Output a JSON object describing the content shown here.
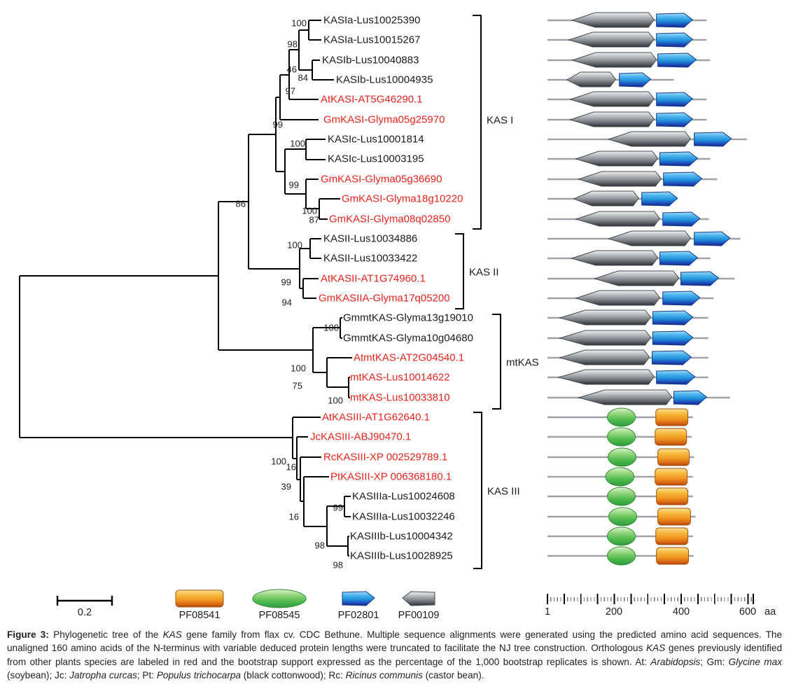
{
  "figure": {
    "rows": [
      {
        "label": "KASIa-Lus10025390",
        "red": false,
        "length": 477,
        "domains": [
          {
            "pfam": "PF00109",
            "start": 75,
            "end": 320
          },
          {
            "pfam": "PF02801",
            "start": 327,
            "end": 435
          }
        ]
      },
      {
        "label": "KASIa-Lus10015267",
        "red": false,
        "length": 477,
        "domains": [
          {
            "pfam": "PF00109",
            "start": 65,
            "end": 320
          },
          {
            "pfam": "PF02801",
            "start": 327,
            "end": 435
          }
        ]
      },
      {
        "label": "KASIb-Lus10040883",
        "red": false,
        "length": 488,
        "domains": [
          {
            "pfam": "PF00109",
            "start": 75,
            "end": 327
          },
          {
            "pfam": "PF02801",
            "start": 331,
            "end": 446
          }
        ]
      },
      {
        "label": "KASIb-Lus10004935",
        "red": false,
        "length": 379,
        "domains": [
          {
            "pfam": "PF00109",
            "start": 59,
            "end": 205
          },
          {
            "pfam": "PF02801",
            "start": 216,
            "end": 310
          }
        ]
      },
      {
        "label": "AtKASI-AT5G46290.1",
        "red": true,
        "length": 477,
        "domains": [
          {
            "pfam": "PF00109",
            "start": 69,
            "end": 320
          },
          {
            "pfam": "PF02801",
            "start": 327,
            "end": 435
          }
        ]
      },
      {
        "label": "GmKASI-Glyma05g25970",
        "red": true,
        "length": 477,
        "domains": [
          {
            "pfam": "PF00109",
            "start": 69,
            "end": 320
          },
          {
            "pfam": "PF02801",
            "start": 327,
            "end": 435
          }
        ]
      },
      {
        "label": "KASIc-Lus10001814",
        "red": false,
        "length": 597,
        "domains": [
          {
            "pfam": "PF00109",
            "start": 184,
            "end": 429
          },
          {
            "pfam": "PF02801",
            "start": 440,
            "end": 551
          }
        ]
      },
      {
        "label": "KASIc-Lus10003195",
        "red": false,
        "length": 488,
        "domains": [
          {
            "pfam": "PF00109",
            "start": 86,
            "end": 331
          },
          {
            "pfam": "PF02801",
            "start": 337,
            "end": 450
          }
        ]
      },
      {
        "label": "GmKASI-Glyma05g36690",
        "red": true,
        "length": 509,
        "domains": [
          {
            "pfam": "PF00109",
            "start": 94,
            "end": 341
          },
          {
            "pfam": "PF02801",
            "start": 348,
            "end": 463
          }
        ]
      },
      {
        "label": "GmKASI-Glyma18g10220",
        "red": true,
        "length": 390,
        "domains": [
          {
            "pfam": "PF00109",
            "start": 80,
            "end": 274
          },
          {
            "pfam": "PF02801",
            "start": 283,
            "end": 390
          }
        ]
      },
      {
        "label": "GmKASI-Glyma08q02850",
        "red": true,
        "length": 484,
        "domains": [
          {
            "pfam": "PF00109",
            "start": 86,
            "end": 337
          },
          {
            "pfam": "PF02801",
            "start": 346,
            "end": 457
          }
        ]
      },
      {
        "label": "KASII-Lus10034886",
        "red": false,
        "length": 578,
        "domains": [
          {
            "pfam": "PF00109",
            "start": 184,
            "end": 429
          },
          {
            "pfam": "PF02801",
            "start": 440,
            "end": 547
          }
        ]
      },
      {
        "label": "KASII-Lus10033422",
        "red": false,
        "length": 488,
        "domains": [
          {
            "pfam": "PF00109",
            "start": 73,
            "end": 331
          },
          {
            "pfam": "PF02801",
            "start": 337,
            "end": 450
          }
        ]
      },
      {
        "label": "AtKASII-AT1G74960.1",
        "red": true,
        "length": 561,
        "domains": [
          {
            "pfam": "PF00109",
            "start": 142,
            "end": 394
          },
          {
            "pfam": "PF02801",
            "start": 400,
            "end": 513
          }
        ]
      },
      {
        "label": "GmKASIIA-Glyma17q05200",
        "red": true,
        "length": 498,
        "domains": [
          {
            "pfam": "PF00109",
            "start": 86,
            "end": 337
          },
          {
            "pfam": "PF02801",
            "start": 346,
            "end": 457
          }
        ]
      },
      {
        "label": "GmmtKAS-Glyma13g19010",
        "red": false,
        "length": 482,
        "domains": [
          {
            "pfam": "PF00109",
            "start": 38,
            "end": 310
          },
          {
            "pfam": "PF02801",
            "start": 316,
            "end": 436
          }
        ]
      },
      {
        "label": "GmmtKAS-Glyma10g04680",
        "red": false,
        "length": 482,
        "domains": [
          {
            "pfam": "PF00109",
            "start": 38,
            "end": 310
          },
          {
            "pfam": "PF02801",
            "start": 316,
            "end": 436
          }
        ]
      },
      {
        "label": "AtmtKAS-AT2G04540.1",
        "red": true,
        "length": 482,
        "domains": [
          {
            "pfam": "PF00109",
            "start": 38,
            "end": 306
          },
          {
            "pfam": "PF02801",
            "start": 314,
            "end": 431
          }
        ]
      },
      {
        "label": "mtKAS-Lus10014622",
        "red": true,
        "length": 482,
        "domains": [
          {
            "pfam": "PF00109",
            "start": 34,
            "end": 320
          },
          {
            "pfam": "PF02801",
            "start": 327,
            "end": 442
          }
        ]
      },
      {
        "label": "mtKAS-Lus10033810",
        "red": true,
        "length": 547,
        "domains": [
          {
            "pfam": "PF00109",
            "start": 94,
            "end": 373
          },
          {
            "pfam": "PF02801",
            "start": 379,
            "end": 477
          }
        ]
      },
      {
        "label": "AtKASIII-AT1G62640.1",
        "red": true,
        "length": 436,
        "domains": [
          {
            "pfam": "PF08545",
            "start": 180,
            "end": 264
          },
          {
            "pfam": "PF08541",
            "start": 325,
            "end": 421
          }
        ]
      },
      {
        "label": "JcKASIII-ABJ90470.1",
        "red": true,
        "length": 432,
        "domains": [
          {
            "pfam": "PF08545",
            "start": 180,
            "end": 264
          },
          {
            "pfam": "PF08541",
            "start": 323,
            "end": 417
          }
        ]
      },
      {
        "label": "RcKASIII-XP 002529789.1",
        "red": true,
        "length": 440,
        "domains": [
          {
            "pfam": "PF08545",
            "start": 182,
            "end": 266
          },
          {
            "pfam": "PF08541",
            "start": 331,
            "end": 425
          }
        ]
      },
      {
        "label": "PtKASIII-XP 006368180.1",
        "red": true,
        "length": 436,
        "domains": [
          {
            "pfam": "PF08545",
            "start": 175,
            "end": 260
          },
          {
            "pfam": "PF08541",
            "start": 323,
            "end": 419
          }
        ]
      },
      {
        "label": "KASIIIa-Lus10024608",
        "red": false,
        "length": 436,
        "domains": [
          {
            "pfam": "PF08545",
            "start": 180,
            "end": 264
          },
          {
            "pfam": "PF08541",
            "start": 327,
            "end": 421
          }
        ]
      },
      {
        "label": "KASIIIa-Lus10032246",
        "red": false,
        "length": 444,
        "domains": [
          {
            "pfam": "PF08545",
            "start": 184,
            "end": 268
          },
          {
            "pfam": "PF08541",
            "start": 331,
            "end": 429
          }
        ]
      },
      {
        "label": "KASIIIb-Lus10004342",
        "red": false,
        "length": 436,
        "domains": [
          {
            "pfam": "PF08545",
            "start": 180,
            "end": 264
          },
          {
            "pfam": "PF08541",
            "start": 325,
            "end": 421
          }
        ]
      },
      {
        "label": "KASIIIb-Lus10028925",
        "red": false,
        "length": 438,
        "domains": [
          {
            "pfam": "PF08545",
            "start": 180,
            "end": 264
          },
          {
            "pfam": "PF08541",
            "start": 327,
            "end": 423
          }
        ]
      }
    ],
    "bootstraps": [
      100,
      98,
      46,
      84,
      97,
      99,
      100,
      99,
      100,
      87,
      86,
      100,
      99,
      94,
      100,
      100,
      75,
      100,
      100,
      16,
      39,
      16,
      99,
      98,
      98
    ],
    "groups": [
      {
        "label": "KAS I"
      },
      {
        "label": "KAS II"
      },
      {
        "label": "mtKAS"
      },
      {
        "label": "KAS III"
      }
    ],
    "scale_bar": {
      "value": "0.2"
    },
    "legend": {
      "items": [
        {
          "pfam": "PF08541",
          "shape": "rounded-rectangle",
          "color": "#f0951f"
        },
        {
          "pfam": "PF08545",
          "shape": "ellipse",
          "color": "#4eba4d"
        },
        {
          "pfam": "PF02801",
          "shape": "pentagon-right",
          "color": "#2292dc"
        },
        {
          "pfam": "PF00109",
          "shape": "pentagon-left",
          "color": "#8b9095"
        }
      ]
    },
    "ruler": {
      "tick_labels": [
        "1",
        "200",
        "400",
        "600"
      ],
      "unit": "aa",
      "min": 1,
      "max": 620,
      "major_step": 50,
      "minor_step": 10
    }
  },
  "colors": {
    "ortholog_red": "#e7251d",
    "text_black": "#1c1c1c",
    "tree_line": "#000000",
    "backbone_line": "#9fa3a7"
  },
  "caption": {
    "segments": [
      {
        "text": "Figure 3: ",
        "bold": true
      },
      {
        "text": "Phylogenetic tree of the "
      },
      {
        "text": "KAS",
        "italic": true
      },
      {
        "text": " gene family from flax cv. CDC Bethune. Multiple sequence alignments were generated using the predicted amino acid sequences. The unaligned 160 amino acids of the N-terminus with variable deduced protein lengths were truncated to facilitate the NJ tree construction. Orthologous "
      },
      {
        "text": "KAS",
        "italic": true
      },
      {
        "text": " genes previously identified from other plants species are labeled in red and the bootstrap support expressed as the percentage of the 1,000 bootstrap replicates is shown. At: "
      },
      {
        "text": "Arabidopsis",
        "italic": true
      },
      {
        "text": "; Gm: "
      },
      {
        "text": "Glycine max",
        "italic": true
      },
      {
        "text": " (soybean); Jc: "
      },
      {
        "text": "Jatropha curcas",
        "italic": true
      },
      {
        "text": "; Pt: "
      },
      {
        "text": "Populus trichocarpa",
        "italic": true
      },
      {
        "text": " (black cottonwood); Rc: "
      },
      {
        "text": "Ricinus communis",
        "italic": true
      },
      {
        "text": " (castor bean)."
      }
    ]
  }
}
